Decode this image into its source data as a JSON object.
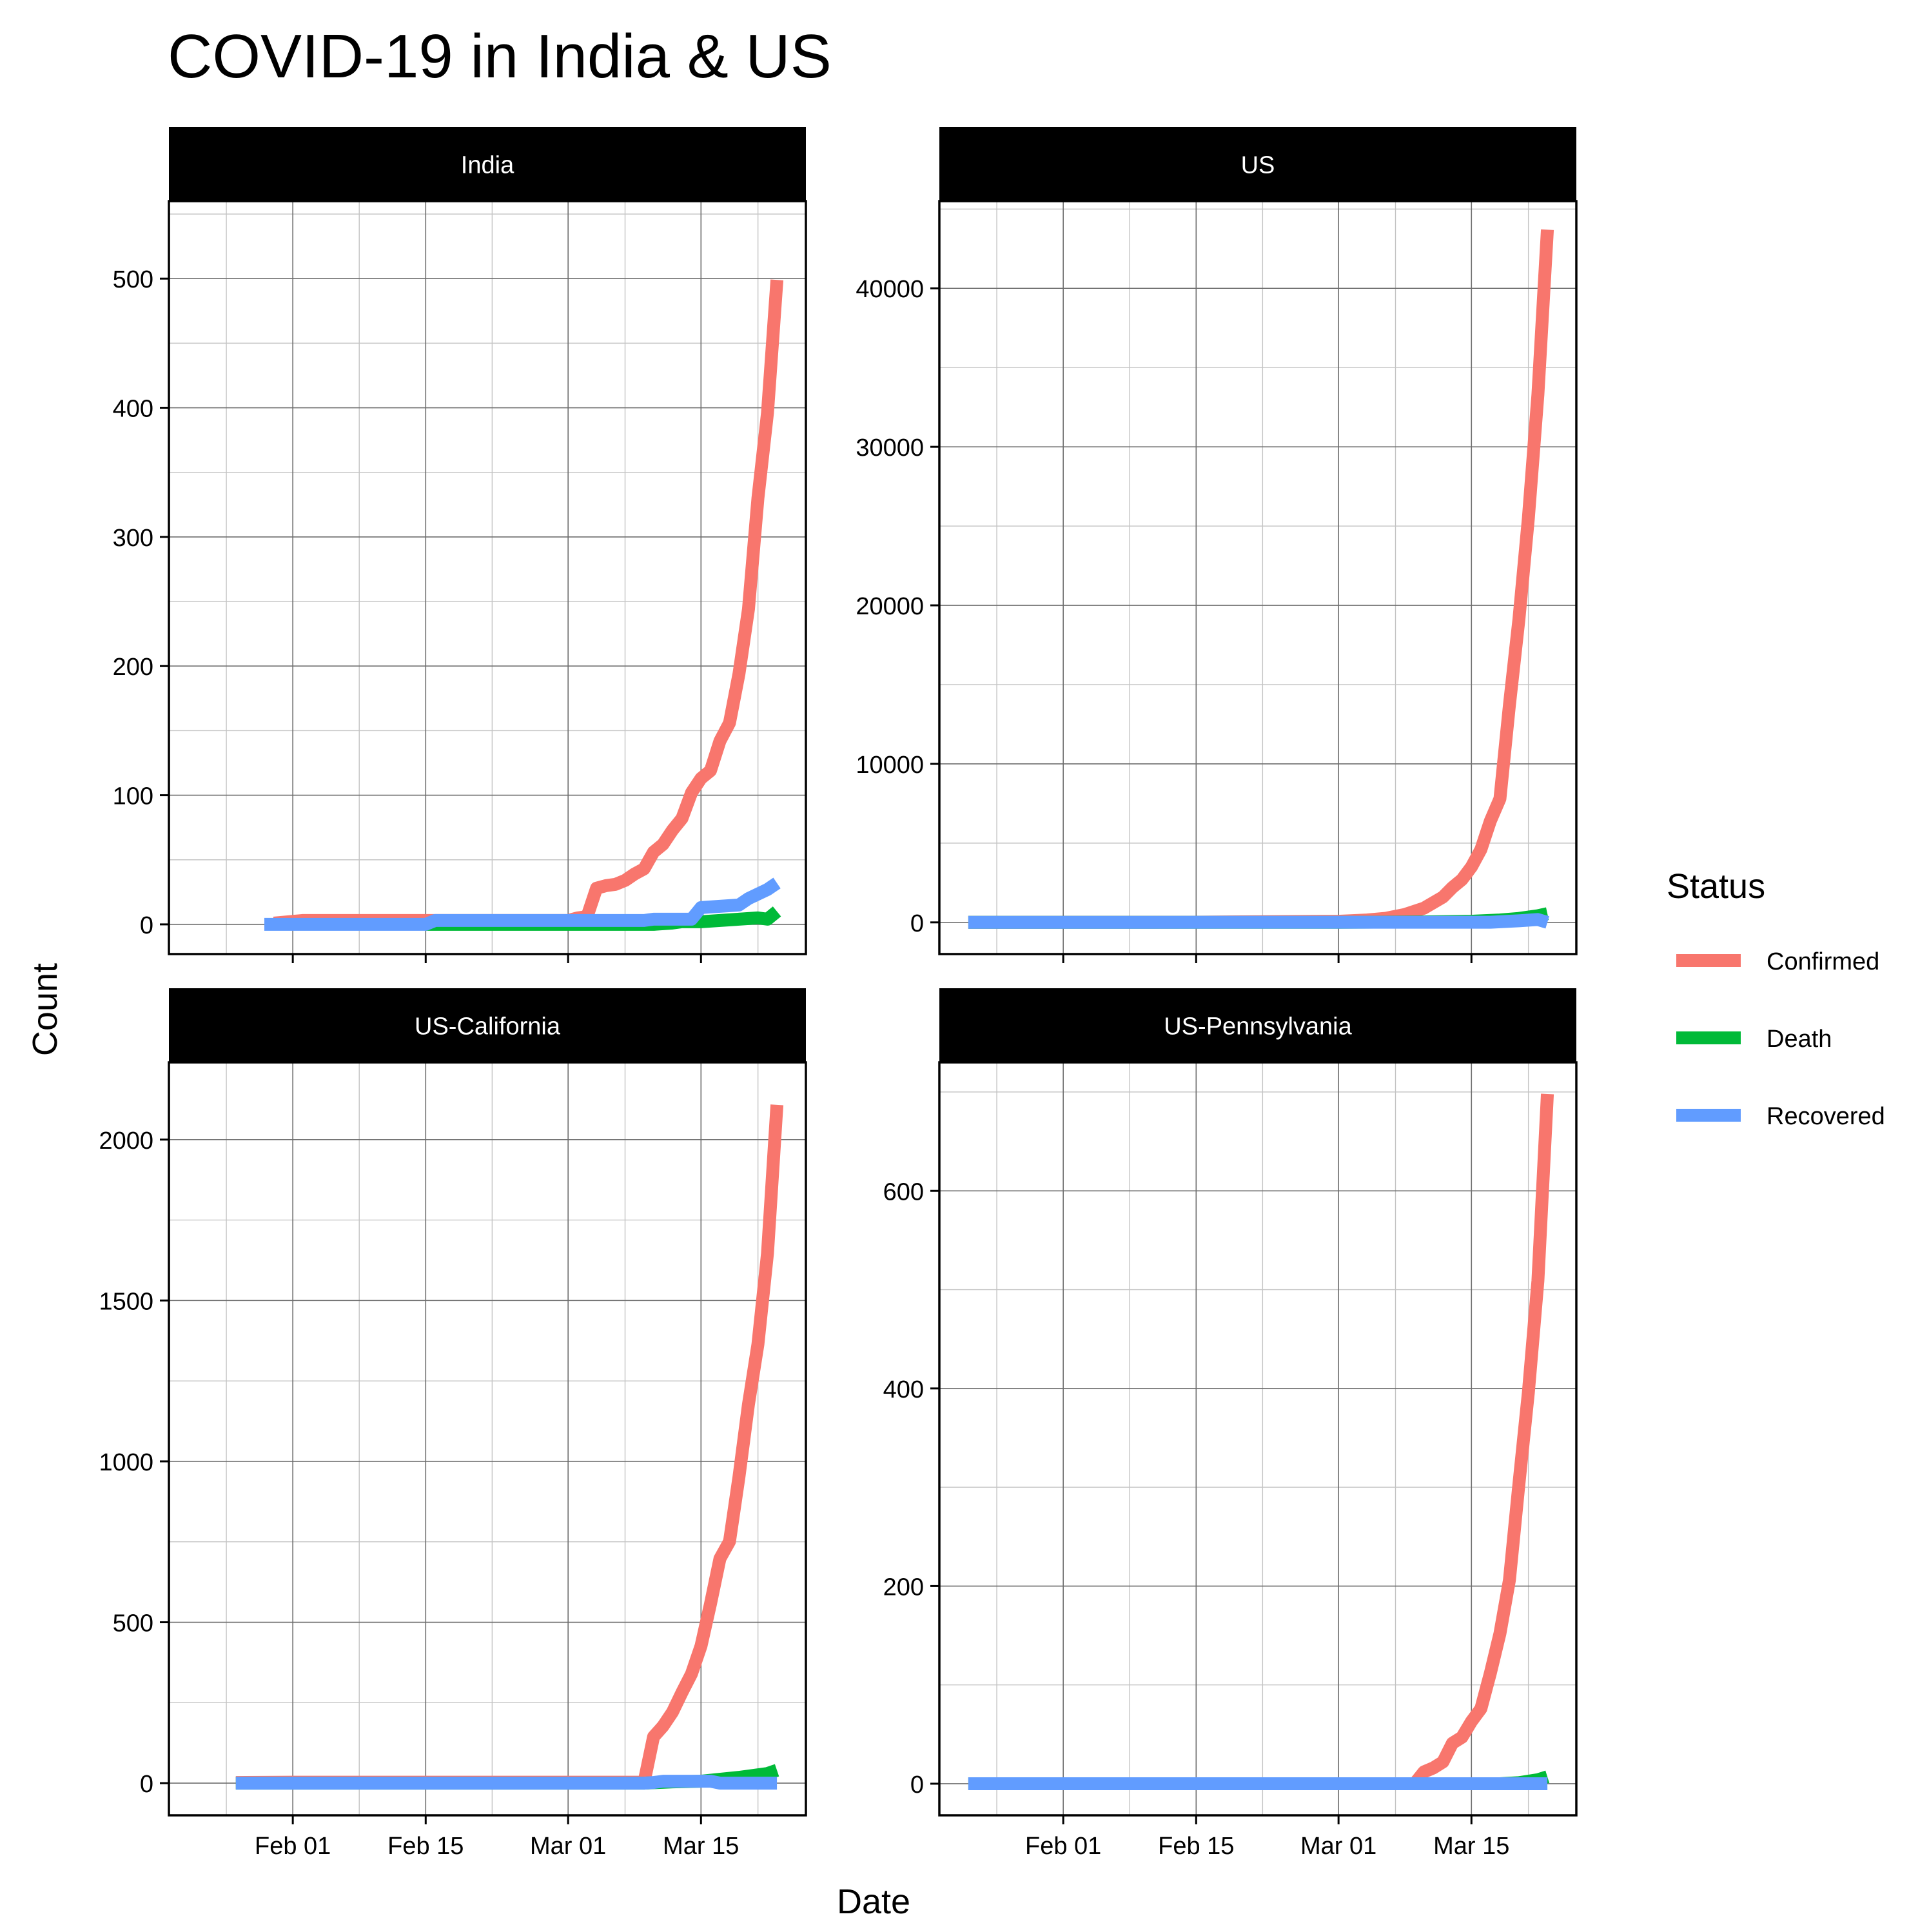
{
  "chart_data": {
    "type": "line",
    "title": "COVID-19 in India & US",
    "xlabel": "Date",
    "ylabel": "Count",
    "x_tick_labels": [
      "Feb 01",
      "Feb 15",
      "Mar 01",
      "Mar 15"
    ],
    "x_tick_dates": [
      "2020-02-01",
      "2020-02-15",
      "2020-03-01",
      "2020-03-15"
    ],
    "legend": {
      "title": "Status",
      "position": "right",
      "entries": [
        {
          "label": "Confirmed",
          "color": "#F8766D"
        },
        {
          "label": "Death",
          "color": "#00BA38"
        },
        {
          "label": "Recovered",
          "color": "#619CFF"
        }
      ]
    },
    "grid": true,
    "panels": [
      {
        "name": "India",
        "ylim": [
          -23,
          560
        ],
        "y_ticks": [
          0,
          100,
          200,
          300,
          400,
          500
        ],
        "series": [
          {
            "name": "Confirmed",
            "points": [
              [
                "2020-01-30",
                1
              ],
              [
                "2020-02-02",
                3
              ],
              [
                "2020-02-15",
                3
              ],
              [
                "2020-03-01",
                3
              ],
              [
                "2020-03-02",
                5
              ],
              [
                "2020-03-03",
                6
              ],
              [
                "2020-03-04",
                28
              ],
              [
                "2020-03-05",
                30
              ],
              [
                "2020-03-06",
                31
              ],
              [
                "2020-03-07",
                34
              ],
              [
                "2020-03-08",
                39
              ],
              [
                "2020-03-09",
                43
              ],
              [
                "2020-03-10",
                56
              ],
              [
                "2020-03-11",
                62
              ],
              [
                "2020-03-12",
                73
              ],
              [
                "2020-03-13",
                82
              ],
              [
                "2020-03-14",
                102
              ],
              [
                "2020-03-15",
                113
              ],
              [
                "2020-03-16",
                119
              ],
              [
                "2020-03-17",
                142
              ],
              [
                "2020-03-18",
                156
              ],
              [
                "2020-03-19",
                194
              ],
              [
                "2020-03-20",
                244
              ],
              [
                "2020-03-21",
                330
              ],
              [
                "2020-03-22",
                396
              ],
              [
                "2020-03-23",
                499
              ]
            ]
          },
          {
            "name": "Death",
            "points": [
              [
                "2020-02-15",
                0
              ],
              [
                "2020-03-10",
                0
              ],
              [
                "2020-03-12",
                1
              ],
              [
                "2020-03-13",
                2
              ],
              [
                "2020-03-15",
                2
              ],
              [
                "2020-03-17",
                3
              ],
              [
                "2020-03-19",
                4
              ],
              [
                "2020-03-21",
                5
              ],
              [
                "2020-03-22",
                4
              ],
              [
                "2020-03-23",
                10
              ]
            ]
          },
          {
            "name": "Recovered",
            "points": [
              [
                "2020-01-29",
                0
              ],
              [
                "2020-02-15",
                0
              ],
              [
                "2020-02-16",
                3
              ],
              [
                "2020-03-09",
                3
              ],
              [
                "2020-03-10",
                4
              ],
              [
                "2020-03-14",
                4
              ],
              [
                "2020-03-15",
                13
              ],
              [
                "2020-03-17",
                14
              ],
              [
                "2020-03-19",
                15
              ],
              [
                "2020-03-20",
                20
              ],
              [
                "2020-03-22",
                27
              ],
              [
                "2020-03-23",
                32
              ]
            ]
          }
        ]
      },
      {
        "name": "US",
        "ylim": [
          -2000,
          45500
        ],
        "y_ticks": [
          0,
          10000,
          20000,
          30000,
          40000
        ],
        "series": [
          {
            "name": "Confirmed",
            "points": [
              [
                "2020-01-22",
                1
              ],
              [
                "2020-02-15",
                15
              ],
              [
                "2020-03-01",
                70
              ],
              [
                "2020-03-04",
                150
              ],
              [
                "2020-03-06",
                260
              ],
              [
                "2020-03-08",
                500
              ],
              [
                "2020-03-10",
                900
              ],
              [
                "2020-03-12",
                1600
              ],
              [
                "2020-03-13",
                2200
              ],
              [
                "2020-03-14",
                2700
              ],
              [
                "2020-03-15",
                3500
              ],
              [
                "2020-03-16",
                4600
              ],
              [
                "2020-03-17",
                6400
              ],
              [
                "2020-03-18",
                7800
              ],
              [
                "2020-03-19",
                13700
              ],
              [
                "2020-03-20",
                19100
              ],
              [
                "2020-03-21",
                25500
              ],
              [
                "2020-03-22",
                33300
              ],
              [
                "2020-03-23",
                43700
              ]
            ]
          },
          {
            "name": "Death",
            "points": [
              [
                "2020-01-22",
                0
              ],
              [
                "2020-03-01",
                1
              ],
              [
                "2020-03-10",
                28
              ],
              [
                "2020-03-15",
                68
              ],
              [
                "2020-03-18",
                150
              ],
              [
                "2020-03-20",
                250
              ],
              [
                "2020-03-22",
                420
              ],
              [
                "2020-03-23",
                550
              ]
            ]
          },
          {
            "name": "Recovered",
            "points": [
              [
                "2020-01-22",
                0
              ],
              [
                "2020-03-01",
                7
              ],
              [
                "2020-03-17",
                8
              ],
              [
                "2020-03-20",
                100
              ],
              [
                "2020-03-22",
                180
              ],
              [
                "2020-03-23",
                0
              ]
            ]
          }
        ]
      },
      {
        "name": "US-California",
        "ylim": [
          -100,
          2240
        ],
        "y_ticks": [
          0,
          500,
          1000,
          1500,
          2000
        ],
        "series": [
          {
            "name": "Confirmed",
            "points": [
              [
                "2020-01-26",
                2
              ],
              [
                "2020-02-01",
                3
              ],
              [
                "2020-03-09",
                3
              ],
              [
                "2020-03-10",
                144
              ],
              [
                "2020-03-11",
                177
              ],
              [
                "2020-03-12",
                221
              ],
              [
                "2020-03-13",
                282
              ],
              [
                "2020-03-14",
                340
              ],
              [
                "2020-03-15",
                426
              ],
              [
                "2020-03-16",
                557
              ],
              [
                "2020-03-17",
                698
              ],
              [
                "2020-03-18",
                751
              ],
              [
                "2020-03-19",
                952
              ],
              [
                "2020-03-20",
                1177
              ],
              [
                "2020-03-21",
                1364
              ],
              [
                "2020-03-22",
                1646
              ],
              [
                "2020-03-23",
                2108
              ]
            ]
          },
          {
            "name": "Death",
            "points": [
              [
                "2020-01-26",
                0
              ],
              [
                "2020-03-09",
                0
              ],
              [
                "2020-03-12",
                4
              ],
              [
                "2020-03-15",
                6
              ],
              [
                "2020-03-17",
                12
              ],
              [
                "2020-03-19",
                18
              ],
              [
                "2020-03-21",
                26
              ],
              [
                "2020-03-22",
                30
              ],
              [
                "2020-03-23",
                40
              ]
            ]
          },
          {
            "name": "Recovered",
            "points": [
              [
                "2020-01-26",
                0
              ],
              [
                "2020-03-09",
                0
              ],
              [
                "2020-03-10",
                2
              ],
              [
                "2020-03-11",
                6
              ],
              [
                "2020-03-16",
                6
              ],
              [
                "2020-03-17",
                0
              ],
              [
                "2020-03-23",
                0
              ]
            ]
          }
        ]
      },
      {
        "name": "US-Pennsylvania",
        "ylim": [
          -32,
          730
        ],
        "y_ticks": [
          0,
          200,
          400,
          600
        ],
        "series": [
          {
            "name": "Confirmed",
            "points": [
              [
                "2020-01-22",
                0
              ],
              [
                "2020-03-09",
                0
              ],
              [
                "2020-03-10",
                12
              ],
              [
                "2020-03-11",
                16
              ],
              [
                "2020-03-12",
                22
              ],
              [
                "2020-03-13",
                41
              ],
              [
                "2020-03-14",
                47
              ],
              [
                "2020-03-15",
                63
              ],
              [
                "2020-03-16",
                76
              ],
              [
                "2020-03-17",
                112
              ],
              [
                "2020-03-18",
                152
              ],
              [
                "2020-03-19",
                206
              ],
              [
                "2020-03-20",
                303
              ],
              [
                "2020-03-21",
                396
              ],
              [
                "2020-03-22",
                509
              ],
              [
                "2020-03-23",
                698
              ]
            ]
          },
          {
            "name": "Death",
            "points": [
              [
                "2020-01-22",
                0
              ],
              [
                "2020-03-18",
                0
              ],
              [
                "2020-03-20",
                1
              ],
              [
                "2020-03-22",
                4
              ],
              [
                "2020-03-23",
                7
              ]
            ]
          },
          {
            "name": "Recovered",
            "points": [
              [
                "2020-01-22",
                0
              ],
              [
                "2020-03-23",
                0
              ]
            ]
          }
        ]
      }
    ]
  }
}
